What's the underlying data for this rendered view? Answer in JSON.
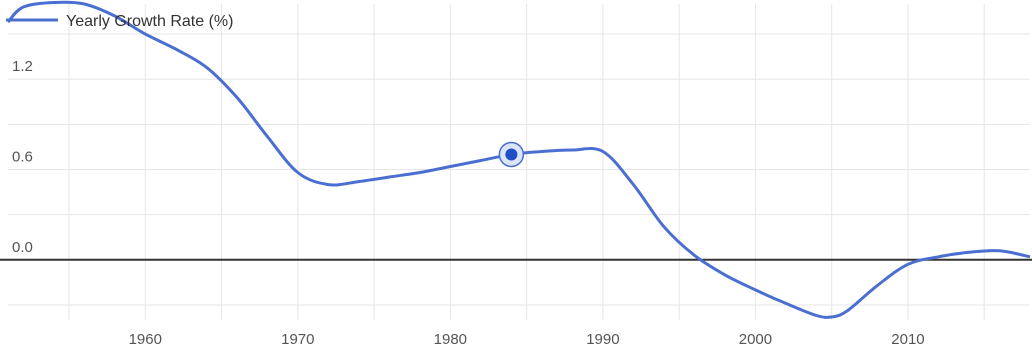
{
  "chart_data": {
    "type": "line",
    "title": "",
    "xlabel": "",
    "ylabel": "",
    "legend": {
      "position": "top-left",
      "label": "Yearly Growth Rate (%)"
    },
    "xlim": [
      1951,
      2018
    ],
    "ylim": [
      -0.4,
      1.7
    ],
    "x_ticks": [
      1960,
      1970,
      1980,
      1990,
      2000,
      2010
    ],
    "y_ticks": [
      0.0,
      0.6,
      1.2
    ],
    "x_tick_labels": [
      "1960",
      "1970",
      "1980",
      "1990",
      "2000",
      "2010"
    ],
    "y_tick_labels": [
      "0.0",
      "0.6",
      "1.2"
    ],
    "grid": true,
    "zero_line": true,
    "colors": {
      "series": "#4a6fd1",
      "marker": "#1f4fc4",
      "grid": "#e6e6e6",
      "baseline": "#333333"
    },
    "series": [
      {
        "name": "Yearly Growth Rate (%)",
        "x": [
          1951,
          1952,
          1954,
          1956,
          1958,
          1960,
          1962,
          1964,
          1966,
          1968,
          1970,
          1972,
          1974,
          1976,
          1978,
          1980,
          1982,
          1984,
          1986,
          1988,
          1990,
          1992,
          1994,
          1996,
          1998,
          2000,
          2002,
          2004,
          2005,
          2006,
          2008,
          2010,
          2012,
          2014,
          2016,
          2018
        ],
        "y": [
          1.58,
          1.68,
          1.71,
          1.7,
          1.62,
          1.5,
          1.4,
          1.28,
          1.08,
          0.82,
          0.58,
          0.5,
          0.52,
          0.55,
          0.58,
          0.62,
          0.66,
          0.7,
          0.72,
          0.73,
          0.72,
          0.5,
          0.22,
          0.03,
          -0.1,
          -0.2,
          -0.29,
          -0.37,
          -0.38,
          -0.34,
          -0.17,
          -0.03,
          0.02,
          0.05,
          0.06,
          0.02
        ]
      }
    ],
    "highlight": {
      "x": 1984,
      "y": 0.7
    }
  }
}
